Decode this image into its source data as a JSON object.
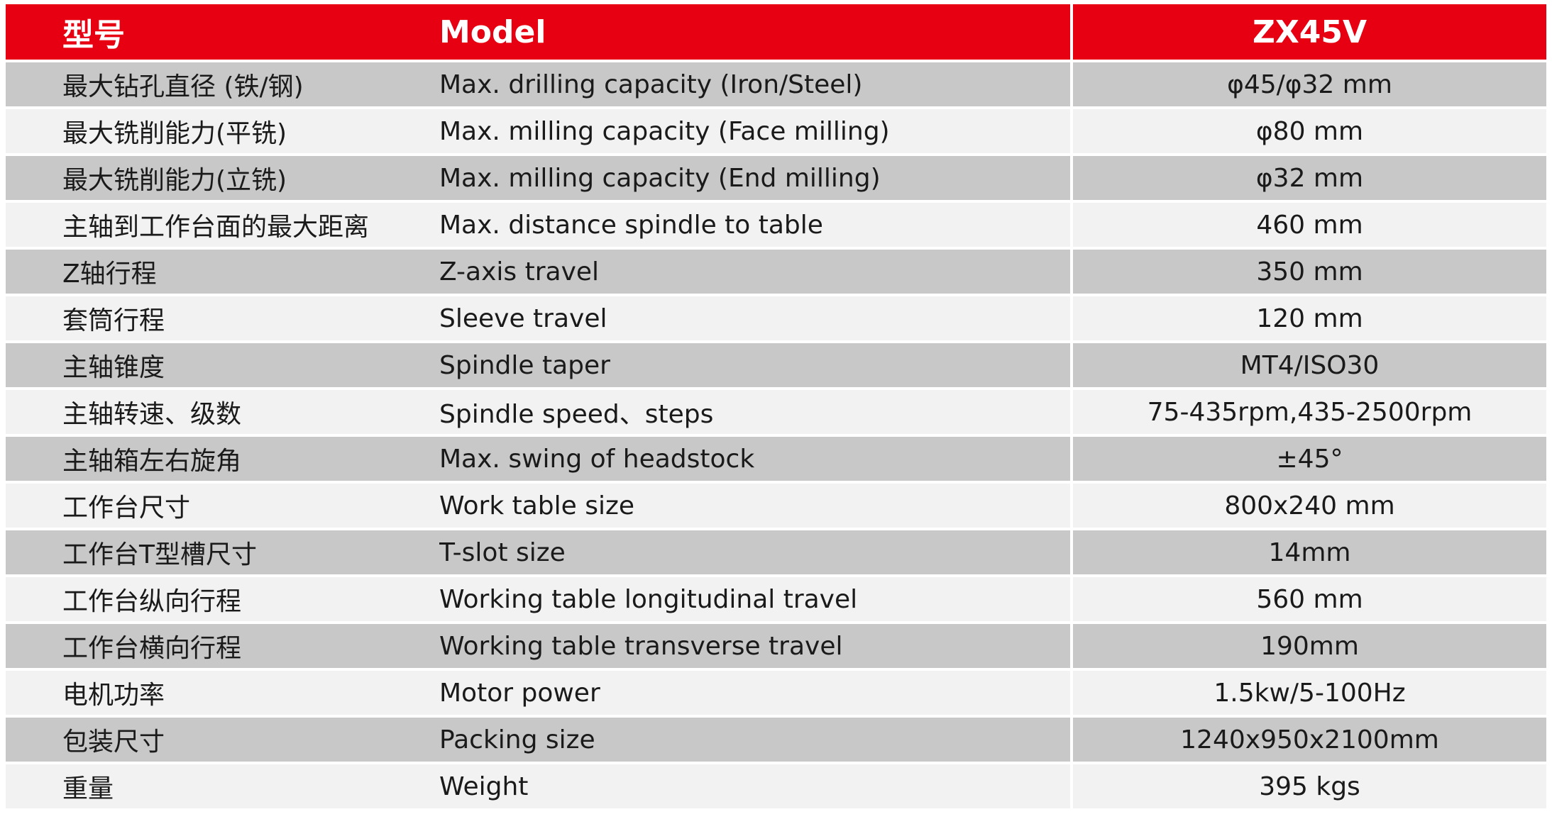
{
  "header": {
    "zh_label": "型号",
    "en_label": "Model",
    "value": "ZX45V"
  },
  "colors": {
    "header_bg": "#e60012",
    "row_dark": "#c8c8c8",
    "row_light": "#f2f2f2"
  },
  "rows": [
    {
      "zh": "最大钻孔直径 (铁/钢)",
      "en": "Max. drilling capacity (Iron/Steel)",
      "value": "φ45/φ32 mm"
    },
    {
      "zh": "最大铣削能力(平铣)",
      "en": "Max. milling capacity (Face milling)",
      "value": "φ80 mm"
    },
    {
      "zh": "最大铣削能力(立铣)",
      "en": "Max. milling capacity (End milling)",
      "value": "φ32 mm"
    },
    {
      "zh": "主轴到工作台面的最大距离",
      "en": "Max. distance spindle to table",
      "value": "460 mm"
    },
    {
      "zh": "Z轴行程",
      "en": "Z-axis travel",
      "value": "350 mm"
    },
    {
      "zh": "套筒行程",
      "en": "Sleeve travel",
      "value": "120 mm"
    },
    {
      "zh": "主轴锥度",
      "en": "Spindle taper",
      "value": "MT4/ISO30"
    },
    {
      "zh": "主轴转速、级数",
      "en": "Spindle speed、steps",
      "value": "75-435rpm,435-2500rpm"
    },
    {
      "zh": "主轴箱左右旋角",
      "en": "Max. swing of headstock",
      "value": "±45°"
    },
    {
      "zh": "工作台尺寸",
      "en": "Work table size",
      "value": "800x240 mm"
    },
    {
      "zh": "工作台T型槽尺寸",
      "en": "T-slot size",
      "value": "14mm"
    },
    {
      "zh": "工作台纵向行程",
      "en": "Working table longitudinal travel",
      "value": "560 mm"
    },
    {
      "zh": "工作台横向行程",
      "en": "Working table transverse travel",
      "value": "190mm"
    },
    {
      "zh": "电机功率",
      "en": "Motor power",
      "value": "1.5kw/5-100Hz"
    },
    {
      "zh": "包装尺寸",
      "en": "Packing size",
      "value": "1240x950x2100mm"
    },
    {
      "zh": "重量",
      "en": "Weight",
      "value": "395 kgs"
    }
  ]
}
